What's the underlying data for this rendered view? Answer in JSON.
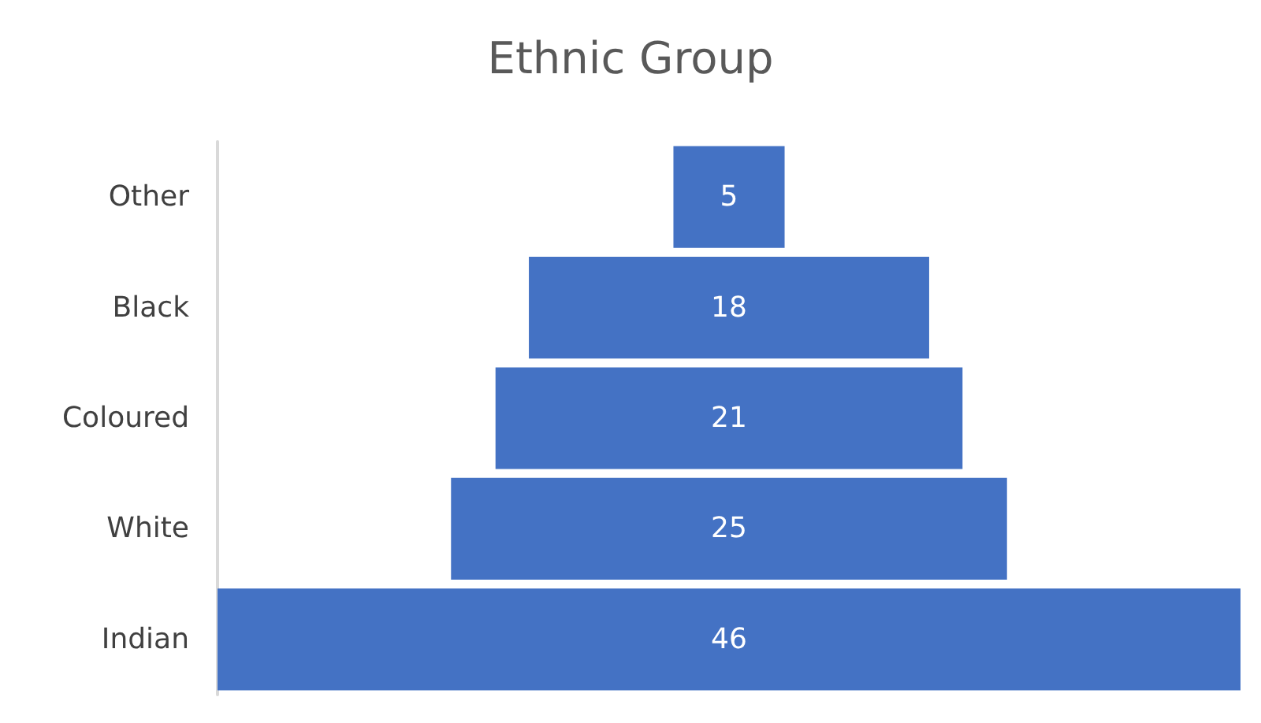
{
  "chart_data": {
    "type": "other",
    "title": "Ethnic Group",
    "categories": [
      "Other",
      "Black",
      "Coloured",
      "White",
      "Indian"
    ],
    "values": [
      5,
      18,
      21,
      25,
      46
    ],
    "color": "#4472c4",
    "data_labels": true
  }
}
